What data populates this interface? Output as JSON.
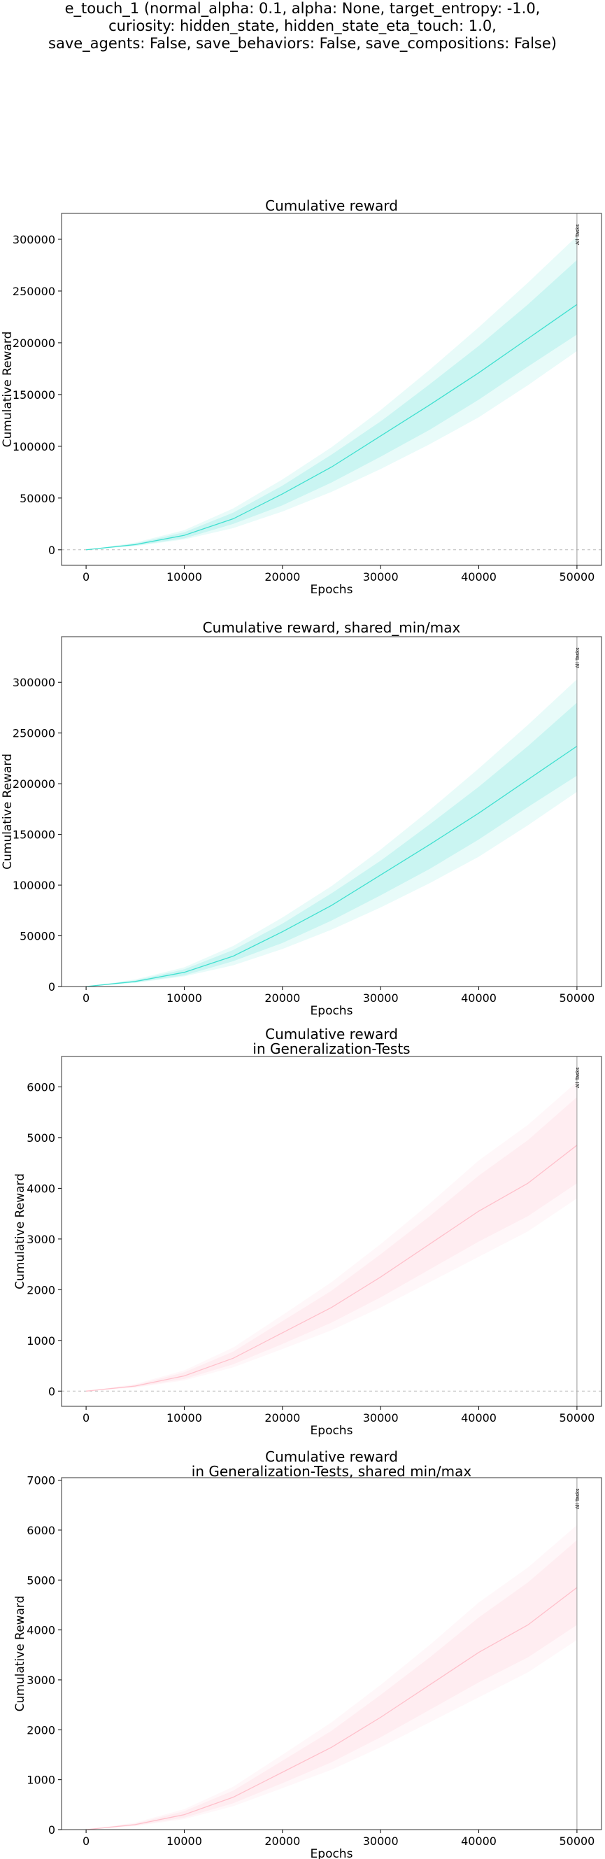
{
  "suptitle": {
    "line1": "e_touch_1 (normal_alpha: 0.1, alpha: None, target_entropy: -1.0,",
    "line2": "curiosity: hidden_state, hidden_state_eta_touch: 1.0,",
    "line3": "save_agents: False, save_behaviors: False, save_compositions: False)"
  },
  "chart_data": [
    {
      "type": "line",
      "title": [
        "Cumulative reward"
      ],
      "xlabel": "Epochs",
      "ylabel": "Cumulative Reward",
      "xlim": [
        -2500,
        52500
      ],
      "ylim": [
        -15000,
        325000
      ],
      "xticks": [
        0,
        10000,
        20000,
        30000,
        40000,
        50000
      ],
      "yticks": [
        0,
        50000,
        100000,
        150000,
        200000,
        250000,
        300000
      ],
      "zero_line": true,
      "vline": {
        "x": 50000,
        "label": "All Tasks"
      },
      "color": "#40e0d0",
      "series": [
        {
          "x": [
            0,
            5000,
            10000,
            15000,
            20000,
            25000,
            30000,
            35000,
            40000,
            45000,
            50000
          ],
          "mean": [
            0,
            5000,
            14000,
            30000,
            54000,
            80000,
            110000,
            140000,
            171000,
            204000,
            237000
          ],
          "inner_low": [
            0,
            4000,
            11000,
            25000,
            43000,
            65000,
            90000,
            116000,
            145000,
            177000,
            208000
          ],
          "inner_high": [
            0,
            6000,
            17000,
            36000,
            62000,
            92000,
            124000,
            160000,
            197000,
            237000,
            280000
          ],
          "outer_low": [
            0,
            3500,
            10000,
            21000,
            37000,
            56000,
            78000,
            102000,
            128000,
            159000,
            192000
          ],
          "outer_high": [
            0,
            7000,
            19000,
            40000,
            68000,
            99000,
            135000,
            174000,
            215000,
            258000,
            303000
          ]
        }
      ]
    },
    {
      "type": "line",
      "title": [
        "Cumulative reward, shared_min/max"
      ],
      "xlabel": "Epochs",
      "ylabel": "Cumulative Reward",
      "xlim": [
        -2500,
        52500
      ],
      "ylim": [
        0,
        345000
      ],
      "xticks": [
        0,
        10000,
        20000,
        30000,
        40000,
        50000
      ],
      "yticks": [
        0,
        50000,
        100000,
        150000,
        200000,
        250000,
        300000
      ],
      "zero_line": false,
      "vline": {
        "x": 50000,
        "label": "All Tasks"
      },
      "color": "#40e0d0",
      "series": [
        {
          "x": [
            0,
            5000,
            10000,
            15000,
            20000,
            25000,
            30000,
            35000,
            40000,
            45000,
            50000
          ],
          "mean": [
            0,
            5000,
            14000,
            30000,
            54000,
            80000,
            110000,
            140000,
            171000,
            204000,
            237000
          ],
          "inner_low": [
            0,
            4000,
            11000,
            25000,
            43000,
            65000,
            90000,
            116000,
            145000,
            177000,
            208000
          ],
          "inner_high": [
            0,
            6000,
            17000,
            36000,
            62000,
            92000,
            124000,
            160000,
            197000,
            237000,
            280000
          ],
          "outer_low": [
            0,
            3500,
            10000,
            21000,
            37000,
            56000,
            78000,
            102000,
            128000,
            159000,
            192000
          ],
          "outer_high": [
            0,
            7000,
            19000,
            40000,
            68000,
            99000,
            135000,
            174000,
            215000,
            258000,
            303000
          ]
        }
      ]
    },
    {
      "type": "line",
      "title": [
        "Cumulative reward",
        "in Generalization-Tests"
      ],
      "xlabel": "Epochs",
      "ylabel": "Cumulative Reward",
      "xlim": [
        -2500,
        52500
      ],
      "ylim": [
        -300,
        6600
      ],
      "xticks": [
        0,
        10000,
        20000,
        30000,
        40000,
        50000
      ],
      "yticks": [
        0,
        1000,
        2000,
        3000,
        4000,
        5000,
        6000
      ],
      "zero_line": true,
      "vline": {
        "x": 50000,
        "label": "All Tasks"
      },
      "color": "#ffc0cb",
      "series": [
        {
          "x": [
            0,
            5000,
            10000,
            15000,
            20000,
            25000,
            30000,
            35000,
            40000,
            45000,
            50000
          ],
          "mean": [
            0,
            100,
            300,
            650,
            1150,
            1650,
            2250,
            2900,
            3550,
            4100,
            4850
          ],
          "inner_low": [
            0,
            80,
            240,
            530,
            930,
            1350,
            1850,
            2400,
            2950,
            3450,
            4100
          ],
          "inner_high": [
            0,
            120,
            370,
            780,
            1380,
            1980,
            2700,
            3450,
            4250,
            4950,
            5800
          ],
          "outer_low": [
            0,
            70,
            210,
            470,
            830,
            1200,
            1650,
            2150,
            2650,
            3150,
            3800
          ],
          "outer_high": [
            0,
            140,
            410,
            860,
            1500,
            2150,
            2900,
            3700,
            4550,
            5250,
            6100
          ]
        }
      ]
    },
    {
      "type": "line",
      "title": [
        "Cumulative reward",
        "in Generalization-Tests, shared min/max"
      ],
      "xlabel": "Epochs",
      "ylabel": "Cumulative Reward",
      "xlim": [
        -2500,
        52500
      ],
      "ylim": [
        0,
        7050
      ],
      "xticks": [
        0,
        10000,
        20000,
        30000,
        40000,
        50000
      ],
      "yticks": [
        0,
        1000,
        2000,
        3000,
        4000,
        5000,
        6000,
        7000
      ],
      "zero_line": false,
      "vline": {
        "x": 50000,
        "label": "All Tasks"
      },
      "color": "#ffc0cb",
      "series": [
        {
          "x": [
            0,
            5000,
            10000,
            15000,
            20000,
            25000,
            30000,
            35000,
            40000,
            45000,
            50000
          ],
          "mean": [
            0,
            100,
            300,
            650,
            1150,
            1650,
            2250,
            2900,
            3550,
            4100,
            4850
          ],
          "inner_low": [
            0,
            80,
            240,
            530,
            930,
            1350,
            1850,
            2400,
            2950,
            3450,
            4100
          ],
          "inner_high": [
            0,
            120,
            370,
            780,
            1380,
            1980,
            2700,
            3450,
            4250,
            4950,
            5800
          ],
          "outer_low": [
            0,
            70,
            210,
            470,
            830,
            1200,
            1650,
            2150,
            2650,
            3150,
            3800
          ],
          "outer_high": [
            0,
            140,
            410,
            860,
            1500,
            2150,
            2900,
            3700,
            4550,
            5250,
            6100
          ]
        }
      ]
    }
  ]
}
